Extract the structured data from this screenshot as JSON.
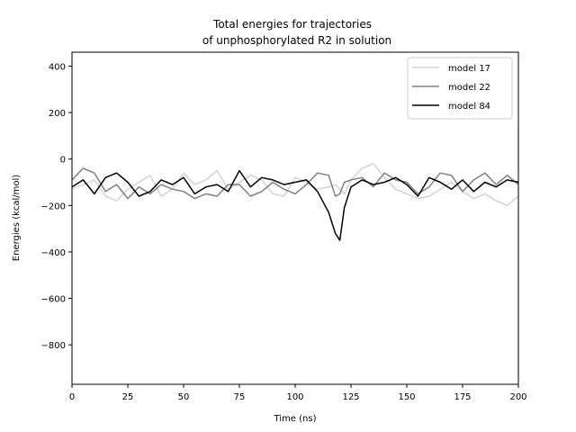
{
  "chart_data": {
    "type": "line",
    "title_line1": "Total energies for trajectories",
    "title_line2": "of unphosphorylated R2 in solution",
    "xlabel": "Time (ns)",
    "ylabel": "Energies (kcal/mol)",
    "xlim": [
      0,
      200
    ],
    "ylim": [
      -970,
      460
    ],
    "xticks": [
      0,
      25,
      50,
      75,
      100,
      125,
      150,
      175,
      200
    ],
    "yticks": [
      -800,
      -600,
      -400,
      -200,
      0,
      200,
      400
    ],
    "legend_position": "top-right",
    "grid": false,
    "x": [
      0,
      5,
      10,
      15,
      20,
      25,
      30,
      35,
      40,
      45,
      50,
      55,
      60,
      65,
      70,
      75,
      80,
      85,
      90,
      95,
      100,
      105,
      110,
      115,
      118,
      120,
      122,
      125,
      130,
      135,
      140,
      145,
      150,
      155,
      160,
      165,
      170,
      175,
      180,
      185,
      190,
      195,
      200
    ],
    "series": [
      {
        "name": "model 17",
        "color": "#d3d3d3",
        "values": [
          -130,
          -110,
          -90,
          -160,
          -180,
          -130,
          -100,
          -70,
          -160,
          -130,
          -60,
          -110,
          -90,
          -50,
          -130,
          -100,
          -70,
          -90,
          -150,
          -160,
          -80,
          -100,
          -130,
          -120,
          -110,
          -130,
          -150,
          -90,
          -40,
          -20,
          -80,
          -130,
          -150,
          -170,
          -160,
          -130,
          -100,
          -140,
          -170,
          -150,
          -180,
          -200,
          -160
        ]
      },
      {
        "name": "model 22",
        "color": "#808080",
        "values": [
          -90,
          -40,
          -60,
          -140,
          -110,
          -170,
          -120,
          -150,
          -110,
          -130,
          -140,
          -170,
          -150,
          -160,
          -110,
          -110,
          -160,
          -140,
          -100,
          -130,
          -150,
          -110,
          -60,
          -70,
          -160,
          -150,
          -100,
          -90,
          -80,
          -120,
          -60,
          -90,
          -100,
          -150,
          -120,
          -60,
          -70,
          -140,
          -90,
          -60,
          -110,
          -70,
          -110
        ]
      },
      {
        "name": "model 84",
        "color": "#000000",
        "values": [
          -120,
          -90,
          -150,
          -80,
          -60,
          -100,
          -160,
          -140,
          -90,
          -110,
          -80,
          -150,
          -120,
          -110,
          -140,
          -50,
          -120,
          -80,
          -90,
          -110,
          -100,
          -90,
          -140,
          -230,
          -320,
          -350,
          -210,
          -120,
          -90,
          -110,
          -100,
          -80,
          -110,
          -160,
          -80,
          -100,
          -130,
          -90,
          -140,
          -100,
          -120,
          -90,
          -100
        ]
      }
    ]
  }
}
